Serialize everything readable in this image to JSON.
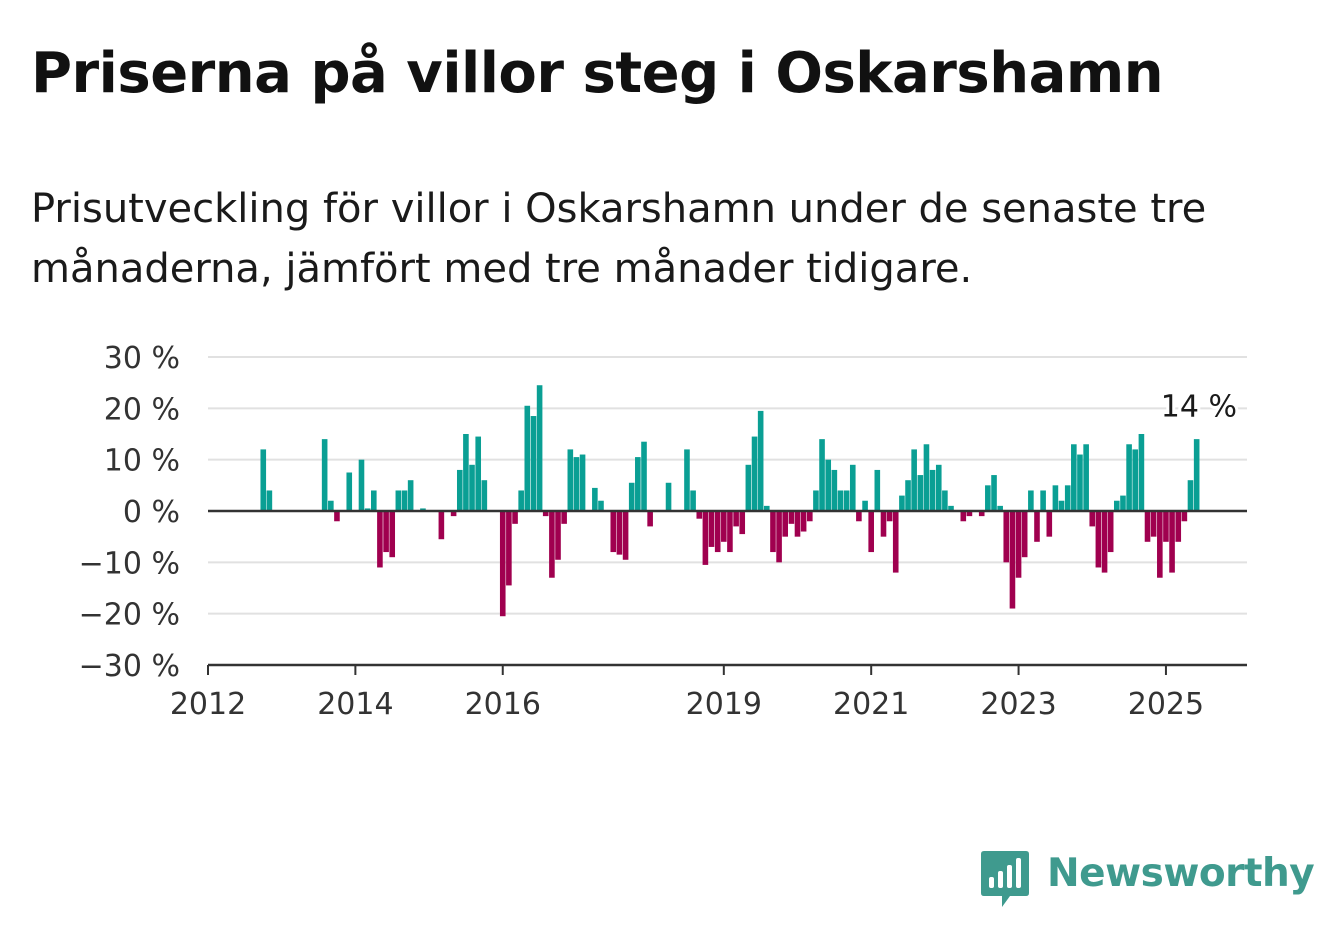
{
  "title": "Priserna på villor steg i Oskarshamn",
  "subtitle": "Prisutveckling för villor i Oskarshamn under de senaste tre månaderna, jämfört med tre månader tidigare.",
  "brand": {
    "name": "Newsworthy",
    "icon": "bar-chart-speech-bubble-icon",
    "color": "#3f9a8e"
  },
  "colors": {
    "positive": "#0a9f94",
    "negative": "#a0004f",
    "grid": "#e1e1e1",
    "zero_line": "#333333",
    "axis": "#333333"
  },
  "chart_data": {
    "type": "bar",
    "ylabel": "",
    "xlabel": "",
    "ylim": [
      -30,
      30
    ],
    "xlim": [
      2012.0,
      2026.1
    ],
    "y_ticks": [
      {
        "value": 30,
        "label": "30 %"
      },
      {
        "value": 20,
        "label": "20 %"
      },
      {
        "value": 10,
        "label": "10 %"
      },
      {
        "value": 0,
        "label": "0 %"
      },
      {
        "value": -10,
        "label": "−10 %"
      },
      {
        "value": -20,
        "label": "−20 %"
      },
      {
        "value": -30,
        "label": "−30 %"
      }
    ],
    "x_ticks": [
      {
        "value": 2012,
        "label": "2012"
      },
      {
        "value": 2014,
        "label": "2014"
      },
      {
        "value": 2016,
        "label": "2016"
      },
      {
        "value": 2019,
        "label": "2019"
      },
      {
        "value": 2021,
        "label": "2021"
      },
      {
        "value": 2023,
        "label": "2023"
      },
      {
        "value": 2025,
        "label": "2025"
      }
    ],
    "grid": true,
    "last_value_label": "14 %",
    "series": [
      {
        "values": [
          [
            2012.75,
            12
          ],
          [
            2012.833,
            4
          ],
          [
            2013.583,
            14
          ],
          [
            2013.667,
            2
          ],
          [
            2013.75,
            -2
          ],
          [
            2013.917,
            7.5
          ],
          [
            2014.083,
            10
          ],
          [
            2014.167,
            0.5
          ],
          [
            2014.25,
            4
          ],
          [
            2014.333,
            -11
          ],
          [
            2014.417,
            -8
          ],
          [
            2014.5,
            -9
          ],
          [
            2014.583,
            4
          ],
          [
            2014.667,
            4
          ],
          [
            2014.75,
            6
          ],
          [
            2014.917,
            0.5
          ],
          [
            2015.167,
            -5.5
          ],
          [
            2015.333,
            -1
          ],
          [
            2015.417,
            8
          ],
          [
            2015.5,
            15
          ],
          [
            2015.583,
            9
          ],
          [
            2015.667,
            14.5
          ],
          [
            2015.75,
            6
          ],
          [
            2016.0,
            -20.5
          ],
          [
            2016.083,
            -14.5
          ],
          [
            2016.167,
            -2.5
          ],
          [
            2016.25,
            4
          ],
          [
            2016.333,
            20.5
          ],
          [
            2016.417,
            18.5
          ],
          [
            2016.5,
            24.5
          ],
          [
            2016.583,
            -1
          ],
          [
            2016.667,
            -13
          ],
          [
            2016.75,
            -9.5
          ],
          [
            2016.833,
            -2.5
          ],
          [
            2016.917,
            12
          ],
          [
            2017.0,
            10.5
          ],
          [
            2017.083,
            11
          ],
          [
            2017.25,
            4.5
          ],
          [
            2017.333,
            2
          ],
          [
            2017.5,
            -8
          ],
          [
            2017.583,
            -8.5
          ],
          [
            2017.667,
            -9.5
          ],
          [
            2017.75,
            5.5
          ],
          [
            2017.833,
            10.5
          ],
          [
            2017.917,
            13.5
          ],
          [
            2018.0,
            -3
          ],
          [
            2018.25,
            5.5
          ],
          [
            2018.5,
            12
          ],
          [
            2018.583,
            4
          ],
          [
            2018.667,
            -1.5
          ],
          [
            2018.75,
            -10.5
          ],
          [
            2018.833,
            -7
          ],
          [
            2018.917,
            -8
          ],
          [
            2019.0,
            -6
          ],
          [
            2019.083,
            -8
          ],
          [
            2019.167,
            -3
          ],
          [
            2019.25,
            -4.5
          ],
          [
            2019.333,
            9
          ],
          [
            2019.417,
            14.5
          ],
          [
            2019.5,
            19.5
          ],
          [
            2019.583,
            1
          ],
          [
            2019.667,
            -8
          ],
          [
            2019.75,
            -10
          ],
          [
            2019.833,
            -5
          ],
          [
            2019.917,
            -2.5
          ],
          [
            2020.0,
            -5
          ],
          [
            2020.083,
            -4
          ],
          [
            2020.167,
            -2
          ],
          [
            2020.25,
            4
          ],
          [
            2020.333,
            14
          ],
          [
            2020.417,
            10
          ],
          [
            2020.5,
            8
          ],
          [
            2020.583,
            4
          ],
          [
            2020.667,
            4
          ],
          [
            2020.75,
            9
          ],
          [
            2020.833,
            -2
          ],
          [
            2020.917,
            2
          ],
          [
            2021.0,
            -8
          ],
          [
            2021.083,
            8
          ],
          [
            2021.167,
            -5
          ],
          [
            2021.25,
            -2
          ],
          [
            2021.333,
            -12
          ],
          [
            2021.417,
            3
          ],
          [
            2021.5,
            6
          ],
          [
            2021.583,
            12
          ],
          [
            2021.667,
            7
          ],
          [
            2021.75,
            13
          ],
          [
            2021.833,
            8
          ],
          [
            2021.917,
            9
          ],
          [
            2022.0,
            4
          ],
          [
            2022.083,
            1
          ],
          [
            2022.25,
            -2
          ],
          [
            2022.333,
            -1
          ],
          [
            2022.5,
            -1
          ],
          [
            2022.583,
            5
          ],
          [
            2022.667,
            7
          ],
          [
            2022.75,
            1
          ],
          [
            2022.833,
            -10
          ],
          [
            2022.917,
            -19
          ],
          [
            2023.0,
            -13
          ],
          [
            2023.083,
            -9
          ],
          [
            2023.167,
            4
          ],
          [
            2023.25,
            -6
          ],
          [
            2023.333,
            4
          ],
          [
            2023.417,
            -5
          ],
          [
            2023.5,
            5
          ],
          [
            2023.583,
            2
          ],
          [
            2023.667,
            5
          ],
          [
            2023.75,
            13
          ],
          [
            2023.833,
            11
          ],
          [
            2023.917,
            13
          ],
          [
            2024.0,
            -3
          ],
          [
            2024.083,
            -11
          ],
          [
            2024.167,
            -12
          ],
          [
            2024.25,
            -8
          ],
          [
            2024.333,
            2
          ],
          [
            2024.417,
            3
          ],
          [
            2024.5,
            13
          ],
          [
            2024.583,
            12
          ],
          [
            2024.667,
            15
          ],
          [
            2024.75,
            -6
          ],
          [
            2024.833,
            -5
          ],
          [
            2024.917,
            -13
          ],
          [
            2025.0,
            -6
          ],
          [
            2025.083,
            -12
          ],
          [
            2025.167,
            -6
          ],
          [
            2025.25,
            -2
          ],
          [
            2025.333,
            6
          ],
          [
            2025.417,
            14
          ]
        ]
      }
    ]
  }
}
